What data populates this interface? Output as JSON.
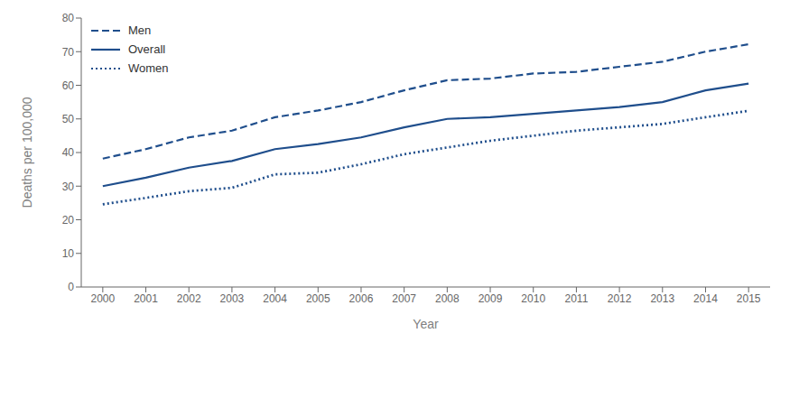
{
  "chart_data": {
    "type": "line",
    "x": [
      2000,
      2001,
      2002,
      2003,
      2004,
      2005,
      2006,
      2007,
      2008,
      2009,
      2010,
      2011,
      2012,
      2013,
      2014,
      2015
    ],
    "series": [
      {
        "name": "Men",
        "color": "#1f4e8c",
        "line_style": "dashed",
        "values": [
          38.2,
          41.0,
          44.5,
          46.5,
          50.5,
          52.5,
          55.0,
          58.5,
          61.5,
          62.0,
          63.5,
          64.0,
          65.5,
          67.0,
          70.0,
          72.2
        ]
      },
      {
        "name": "Overall",
        "color": "#1f4e8c",
        "line_style": "solid",
        "values": [
          30.0,
          32.5,
          35.5,
          37.5,
          41.0,
          42.5,
          44.5,
          47.5,
          50.0,
          50.5,
          51.5,
          52.5,
          53.5,
          55.0,
          58.5,
          60.5
        ]
      },
      {
        "name": "Women",
        "color": "#1f4e8c",
        "line_style": "dotted",
        "values": [
          24.6,
          26.5,
          28.5,
          29.5,
          33.5,
          34.0,
          36.5,
          39.5,
          41.5,
          43.5,
          45.0,
          46.5,
          47.5,
          48.5,
          50.5,
          52.4
        ]
      }
    ],
    "xlabel": "Year",
    "ylabel": "Deaths per 100,000",
    "xlim": [
      1999.5,
      2015.5
    ],
    "xticks": [
      2000,
      2001,
      2002,
      2003,
      2004,
      2005,
      2006,
      2007,
      2008,
      2009,
      2010,
      2011,
      2012,
      2013,
      2014,
      2015
    ],
    "ylim": [
      0,
      80
    ],
    "yticks": [
      0,
      10,
      20,
      30,
      40,
      50,
      60,
      70,
      80
    ],
    "grid": false,
    "legend": "upper left"
  }
}
